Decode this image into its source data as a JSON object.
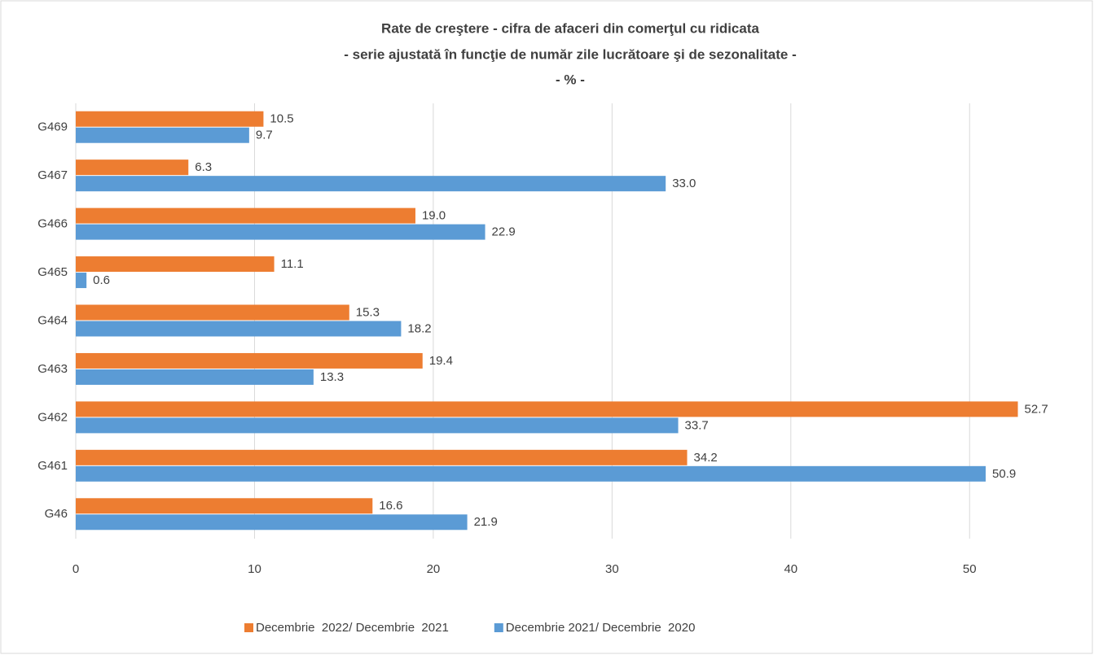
{
  "chart_data": {
    "type": "bar",
    "orientation": "horizontal",
    "title_lines": [
      "Rate de creştere - cifra de afaceri din comerţul cu ridicata",
      "- serie ajustată în funcţie de număr zile lucrătoare şi de sezonalitate -",
      "- % -"
    ],
    "categories": [
      "G46",
      "G461",
      "G462",
      "G463",
      "G464",
      "G465",
      "G466",
      "G467",
      "G469"
    ],
    "series": [
      {
        "name": "Decembrie  2022/ Decembrie  2021",
        "color": "#ed7d31",
        "values": [
          16.6,
          34.2,
          52.7,
          19.4,
          15.3,
          11.1,
          19.0,
          6.3,
          10.5
        ],
        "value_labels": [
          "16.6",
          "34.2",
          "52.7",
          "19.4",
          "15.3",
          "11.1",
          "19.0",
          "6.3",
          "10.5"
        ]
      },
      {
        "name": "Decembrie 2021/ Decembrie  2020",
        "color": "#5b9bd5",
        "values": [
          21.9,
          50.9,
          33.7,
          13.3,
          18.2,
          0.6,
          22.9,
          33.0,
          9.7
        ],
        "value_labels": [
          "21.9",
          "50.9",
          "33.7",
          "13.3",
          "18.2",
          "0.6",
          "22.9",
          "33.0",
          "9.7"
        ]
      }
    ],
    "xlim": [
      0,
      55
    ],
    "xticks": [
      0,
      10,
      20,
      30,
      40,
      50
    ],
    "grid": true,
    "legend": "bottom"
  }
}
